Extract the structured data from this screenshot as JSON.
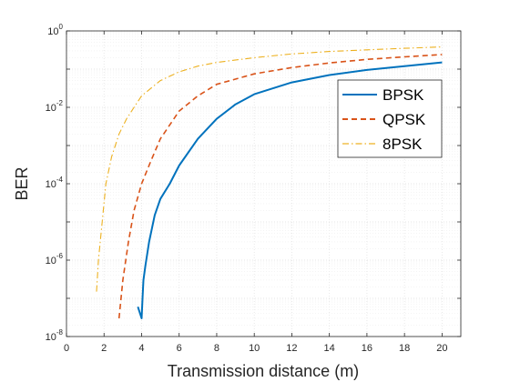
{
  "chart_data": {
    "type": "line",
    "xlabel": "Transmission distance (m)",
    "ylabel": "BER",
    "xlim": [
      0,
      21
    ],
    "ylim": [
      1e-08,
      1
    ],
    "yscale": "log",
    "grid": true,
    "legend_position": "top-right",
    "x_ticks": [
      "0",
      "2",
      "4",
      "6",
      "8",
      "10",
      "12",
      "14",
      "16",
      "18",
      "20"
    ],
    "y_ticks": [
      {
        "base": "10",
        "exp": "0"
      },
      {
        "base": "10",
        "exp": "-2"
      },
      {
        "base": "10",
        "exp": "-4"
      },
      {
        "base": "10",
        "exp": "-6"
      },
      {
        "base": "10",
        "exp": "-8"
      }
    ],
    "series": [
      {
        "name": "BPSK",
        "color": "#0072bd",
        "style": "solid",
        "x": [
          3.8,
          4.0,
          4.05,
          4.1,
          4.2,
          4.4,
          4.7,
          5.0,
          5.5,
          6.0,
          7.0,
          8.0,
          9.0,
          10.0,
          12.0,
          14.0,
          16.0,
          18.0,
          20.0
        ],
        "y": [
          6e-08,
          3e-08,
          1e-07,
          3e-07,
          7e-07,
          3e-06,
          1.5e-05,
          4e-05,
          0.0001,
          0.0003,
          0.0015,
          0.005,
          0.012,
          0.022,
          0.045,
          0.07,
          0.095,
          0.12,
          0.15
        ]
      },
      {
        "name": "QPSK",
        "color": "#d95319",
        "style": "dashed",
        "x": [
          2.8,
          3.0,
          3.3,
          3.6,
          4.0,
          4.5,
          5.0,
          6.0,
          7.0,
          8.0,
          10.0,
          12.0,
          14.0,
          16.0,
          18.0,
          20.0
        ],
        "y": [
          3e-08,
          3e-07,
          3e-06,
          2e-05,
          0.0001,
          0.0004,
          0.0015,
          0.008,
          0.02,
          0.04,
          0.075,
          0.11,
          0.145,
          0.18,
          0.21,
          0.24
        ]
      },
      {
        "name": "8PSK",
        "color": "#edb120",
        "style": "dashdot",
        "x": [
          1.6,
          1.7,
          1.9,
          2.1,
          2.4,
          2.8,
          3.2,
          3.6,
          4.0,
          5.0,
          6.0,
          7.0,
          8.0,
          10.0,
          12.0,
          14.0,
          16.0,
          18.0,
          20.0
        ],
        "y": [
          1.5e-07,
          1e-06,
          1e-05,
          0.0001,
          0.0005,
          0.002,
          0.005,
          0.01,
          0.02,
          0.05,
          0.085,
          0.12,
          0.15,
          0.2,
          0.25,
          0.29,
          0.32,
          0.35,
          0.38
        ]
      }
    ]
  }
}
